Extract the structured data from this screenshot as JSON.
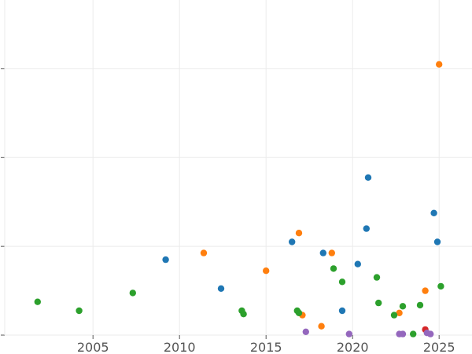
{
  "chart_data": {
    "type": "scatter",
    "title": "",
    "xlabel": "",
    "ylabel": "",
    "xlim": [
      1999.9,
      2026.9
    ],
    "ylim": [
      0,
      15.1
    ],
    "x_ticks": [
      "2005",
      "2010",
      "2015",
      "2020",
      "2025"
    ],
    "y_ticks": [
      0,
      4,
      8,
      12
    ],
    "grid": true,
    "legend": "none",
    "series": [
      {
        "color": "#1f77b4",
        "points": [
          [
            2009.2,
            3.4
          ],
          [
            2012.4,
            2.1
          ],
          [
            2016.5,
            4.2
          ],
          [
            2018.3,
            3.7
          ],
          [
            2019.4,
            1.1
          ],
          [
            2020.3,
            3.2
          ],
          [
            2020.8,
            4.8
          ],
          [
            2020.9,
            7.1
          ],
          [
            2024.7,
            5.5
          ],
          [
            2024.9,
            4.2
          ]
        ]
      },
      {
        "color": "#ff7f0e",
        "points": [
          [
            2011.4,
            3.7
          ],
          [
            2015.0,
            2.9
          ],
          [
            2016.9,
            4.6
          ],
          [
            2017.1,
            0.9
          ],
          [
            2018.2,
            0.4
          ],
          [
            2018.8,
            3.7
          ],
          [
            2022.7,
            1.0
          ],
          [
            2024.2,
            2.0
          ],
          [
            2025.0,
            12.2
          ]
        ]
      },
      {
        "color": "#2ca02c",
        "points": [
          [
            2001.8,
            1.5
          ],
          [
            2004.2,
            1.1
          ],
          [
            2007.3,
            1.9
          ],
          [
            2013.6,
            1.1
          ],
          [
            2013.7,
            0.95
          ],
          [
            2016.8,
            1.1
          ],
          [
            2016.9,
            1.0
          ],
          [
            2018.9,
            3.0
          ],
          [
            2019.4,
            2.4
          ],
          [
            2021.4,
            2.6
          ],
          [
            2021.5,
            1.45
          ],
          [
            2022.4,
            0.9
          ],
          [
            2022.9,
            1.3
          ],
          [
            2023.5,
            0.05
          ],
          [
            2023.9,
            1.35
          ],
          [
            2025.1,
            2.2
          ]
        ]
      },
      {
        "color": "#d62728",
        "points": [
          [
            2024.2,
            0.25
          ]
        ]
      },
      {
        "color": "#9467bd",
        "points": [
          [
            2017.3,
            0.15
          ],
          [
            2019.8,
            0.05
          ],
          [
            2022.7,
            0.05
          ],
          [
            2022.9,
            0.05
          ],
          [
            2024.3,
            0.1
          ],
          [
            2024.5,
            0.05
          ]
        ]
      }
    ]
  }
}
